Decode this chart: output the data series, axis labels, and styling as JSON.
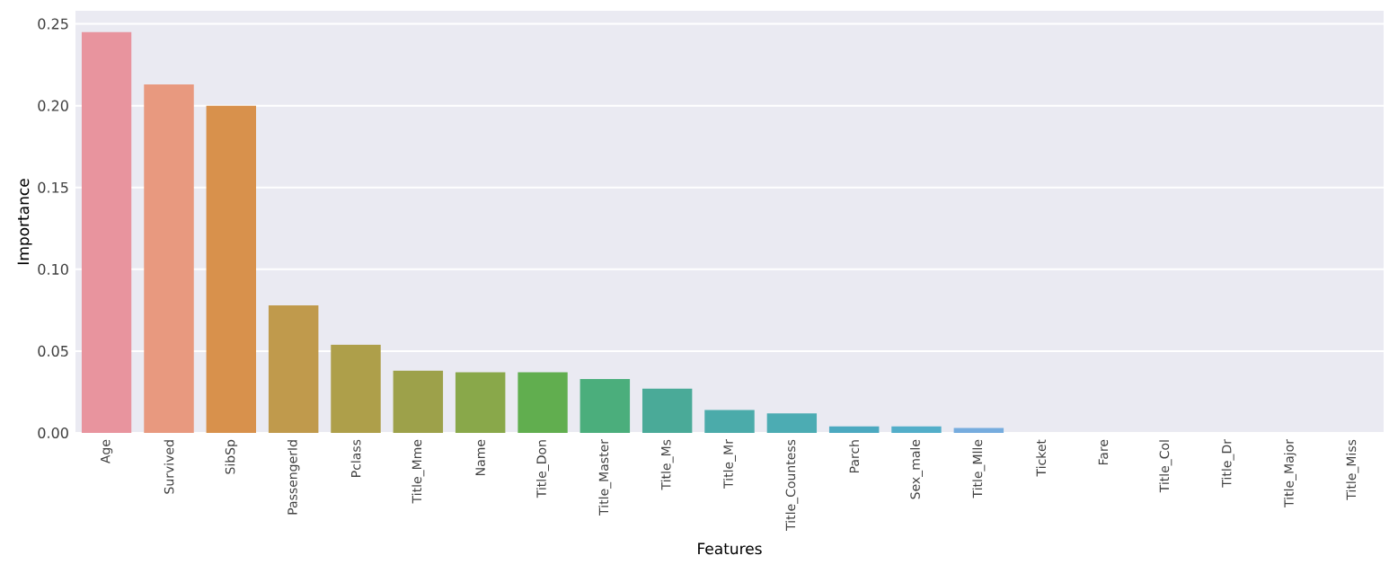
{
  "chart_data": {
    "type": "bar",
    "xlabel": "Features",
    "ylabel": "Importance",
    "categories": [
      "Age",
      "Survived",
      "SibSp",
      "PassengerId",
      "Pclass",
      "Title_Mme",
      "Name",
      "Title_Don",
      "Title_Master",
      "Title_Ms",
      "Title_Mr",
      "Title_Countess",
      "Parch",
      "Sex_male",
      "Title_Mlle",
      "Ticket",
      "Fare",
      "Title_Col",
      "Title_Dr",
      "Title_Major",
      "Title_Miss"
    ],
    "values": [
      0.245,
      0.213,
      0.2,
      0.078,
      0.054,
      0.038,
      0.037,
      0.037,
      0.033,
      0.027,
      0.014,
      0.012,
      0.004,
      0.004,
      0.003,
      0,
      0,
      0,
      0,
      0,
      0
    ],
    "colors": [
      "#e8949e",
      "#e8997f",
      "#d8914c",
      "#c09a4c",
      "#ae9f4a",
      "#9da14a",
      "#89a84a",
      "#61ae4f",
      "#4bae7c",
      "#4aaa98",
      "#4babaa",
      "#4cacb3",
      "#4ca9c0",
      "#53aec9",
      "#76acde",
      "#9fa7e5",
      "#c39de3",
      "#dd91d7",
      "#e38fc0",
      "#e792ae",
      "#e893a0"
    ],
    "ylim": [
      0,
      0.258
    ],
    "yticks": [
      {
        "value": 0,
        "label": "0.00"
      },
      {
        "value": 0.05,
        "label": "0.05"
      },
      {
        "value": 0.1,
        "label": "0.10"
      },
      {
        "value": 0.15,
        "label": "0.15"
      },
      {
        "value": 0.2,
        "label": "0.20"
      },
      {
        "value": 0.25,
        "label": "0.25"
      }
    ],
    "grid": "y"
  }
}
